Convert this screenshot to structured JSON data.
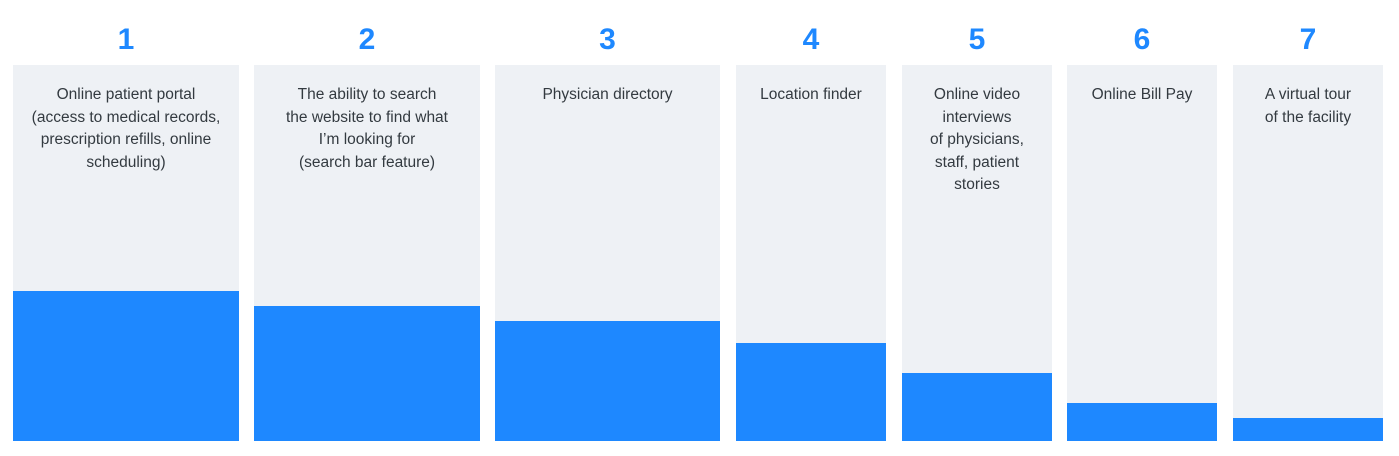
{
  "chart_data": {
    "type": "bar",
    "title": "",
    "xlabel": "",
    "ylabel": "",
    "ylim": [
      0,
      100
    ],
    "bar_color": "#1e88ff",
    "rank_color": "#1e88ff",
    "panel_color": "#eef1f5",
    "categories": [
      {
        "rank": "1",
        "label": "Online patient portal\n(access to medical records,\nprescription refills, online\nscheduling)",
        "value": 40
      },
      {
        "rank": "2",
        "label": "The ability to search\nthe website to find what\nI’m looking for\n(search bar feature)",
        "value": 36
      },
      {
        "rank": "3",
        "label": "Physician directory",
        "value": 32
      },
      {
        "rank": "4",
        "label": "Location finder",
        "value": 26
      },
      {
        "rank": "5",
        "label": "Online video\ninterviews\nof physicians,\nstaff, patient\nstories",
        "value": 18
      },
      {
        "rank": "6",
        "label": "Online Bill Pay",
        "value": 10
      },
      {
        "rank": "7",
        "label": "A virtual tour\nof the facility",
        "value": 6
      }
    ]
  }
}
